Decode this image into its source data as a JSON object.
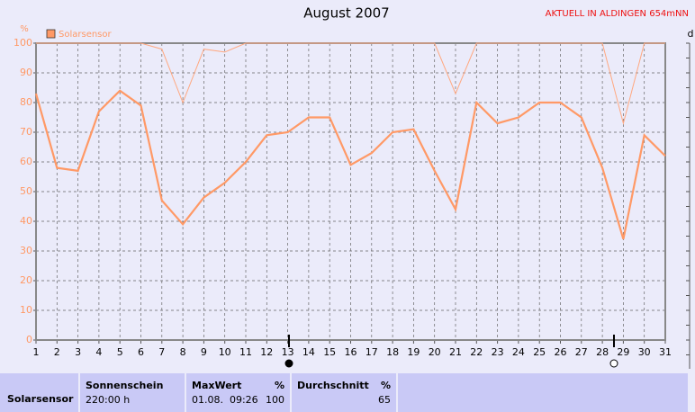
{
  "chart_data": {
    "type": "line",
    "title": "August 2007",
    "annotation": "AKTUELL IN ALDINGEN 654mNN",
    "y_unit": "%",
    "right_axis_label": "d",
    "x": [
      1,
      2,
      3,
      4,
      5,
      6,
      7,
      8,
      9,
      10,
      11,
      12,
      13,
      14,
      15,
      16,
      17,
      18,
      19,
      20,
      21,
      22,
      23,
      24,
      25,
      26,
      27,
      28,
      29,
      30,
      31
    ],
    "xlim": [
      1,
      31
    ],
    "xticks": [
      1,
      2,
      3,
      4,
      5,
      6,
      7,
      8,
      9,
      10,
      11,
      12,
      13,
      14,
      15,
      16,
      17,
      18,
      19,
      20,
      21,
      22,
      23,
      24,
      25,
      26,
      27,
      28,
      29,
      30,
      31
    ],
    "ylim": [
      0,
      100
    ],
    "yticks": [
      0,
      10,
      20,
      30,
      40,
      50,
      60,
      70,
      80,
      90,
      100
    ],
    "grid": true,
    "series": [
      {
        "name": "Solarsensor",
        "color": "#ff9966",
        "width": 2.2,
        "values": [
          83,
          58,
          57,
          77,
          84,
          79,
          47,
          39,
          48,
          53,
          60,
          69,
          70,
          75,
          75,
          59,
          63,
          70,
          71,
          57,
          44,
          80,
          73,
          75,
          80,
          80,
          75,
          58,
          34,
          69,
          62
        ]
      },
      {
        "color": "#ffa880",
        "width": 1,
        "values": [
          100,
          100,
          100,
          100,
          100,
          100,
          98,
          80,
          98,
          97,
          100,
          100,
          100,
          100,
          100,
          100,
          100,
          100,
          100,
          100,
          83,
          100,
          100,
          100,
          100,
          100,
          100,
          100,
          73,
          100,
          100
        ]
      }
    ]
  },
  "summary": {
    "row_label": "Solarsensor",
    "columns": [
      {
        "header": "Sonnenschein",
        "value": "220:00 h"
      },
      {
        "header": "MaxWert",
        "unit": "%",
        "value": "01.08.  09:26",
        "value2": "100"
      },
      {
        "header": "Durchschnitt",
        "unit": "%",
        "value2": "65"
      }
    ]
  }
}
